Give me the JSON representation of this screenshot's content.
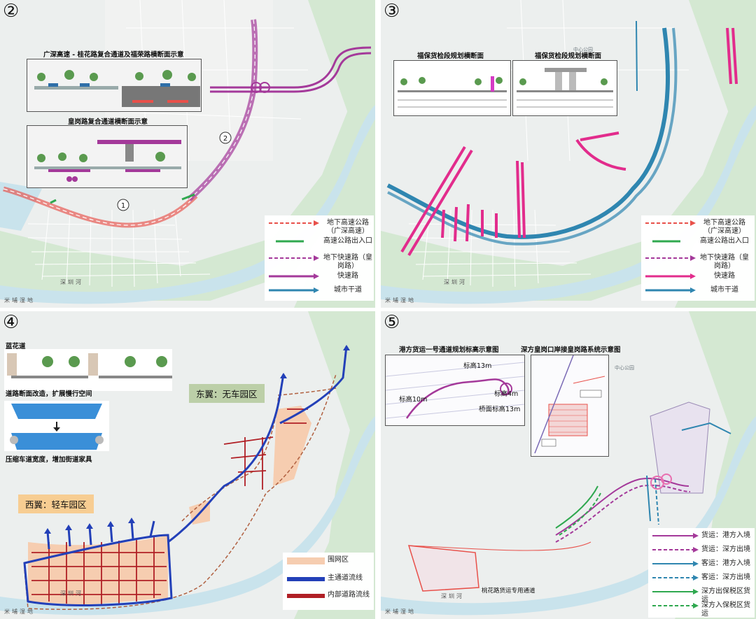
{
  "colors": {
    "expressway": "#e8504a",
    "ramp": "#2fa84f",
    "undergroundFast": "#a4399a",
    "fastRoad": "#a4399a",
    "cityArterial": "#2f86b0",
    "pink": "#e22c8c",
    "mainFlow": "#2340b8",
    "internalFlow": "#b01f25",
    "parkArea": "#f6cdb0",
    "water": "#c9e3ec",
    "green": "#d4e8d2"
  },
  "map_labels": {
    "wetland": "米埔湿地",
    "river": "深圳河",
    "center_park": "中心公园"
  },
  "panel2": {
    "number": "②",
    "inset1_title": "广深高速 - 桂花路复合通道及福荣路横断面示意",
    "inset2_title": "皇岗路复合通道横断面示意",
    "marker1": "1",
    "marker2": "2",
    "legend": [
      {
        "label": "地下高速公路（广深高速）",
        "style": "expressway",
        "dashed": true
      },
      {
        "label": "高速公路出入口",
        "style": "ramp",
        "dashed": false
      },
      {
        "label": "地下快速路（皇岗路）",
        "style": "undergroundFast",
        "dashed": true
      },
      {
        "label": "快速路",
        "style": "fastRoad",
        "dashed": false
      },
      {
        "label": "城市干道",
        "style": "cityArterial",
        "dashed": false
      }
    ]
  },
  "panel3": {
    "number": "③",
    "inset1_title": "福保货检段规划横断面",
    "inset2_title": "福保货检段规划横断面",
    "legend": [
      {
        "label": "地下高速公路（广深高速）",
        "style": "expressway",
        "dashed": true
      },
      {
        "label": "高速公路出入口",
        "style": "ramp",
        "dashed": false
      },
      {
        "label": "地下快速路（皇岗路）",
        "style": "undergroundFast",
        "dashed": true
      },
      {
        "label": "快速路",
        "style": "fastRoad",
        "dashed": false
      },
      {
        "label": "城市干道",
        "style": "cityArterial",
        "dashed": false
      }
    ]
  },
  "panel4": {
    "number": "④",
    "street_name": "蓝花道",
    "caption1": "道路断面改造，扩展慢行空间",
    "caption2": "压缩车道宽度，增加街道家具",
    "east_wing": "东翼：无车园区",
    "west_wing": "西翼：轻车园区",
    "legend": [
      {
        "label": "围网区",
        "style": "parkArea"
      },
      {
        "label": "主通道流线",
        "style": "mainFlow"
      },
      {
        "label": "内部道路流线",
        "style": "internalFlow"
      }
    ]
  },
  "panel5": {
    "number": "⑤",
    "inset1_title": "港方货运一号通道规划标高示意图",
    "inset2_title": "深方皇岗口岸接皇岗路系统示意图",
    "elev_a": "标高13m",
    "elev_b": "标高4m",
    "elev_c": "标高10m",
    "elev_d": "桥面标高13m",
    "cargo_road": "桃花路货运专用通道",
    "legend": [
      {
        "label": "货运：港方入境",
        "color": "#a4399a",
        "dashed": false
      },
      {
        "label": "货运：深方出境",
        "color": "#a4399a",
        "dashed": true
      },
      {
        "label": "客运：港方入境",
        "color": "#2f86b0",
        "dashed": false
      },
      {
        "label": "客运：深方出境",
        "color": "#2f86b0",
        "dashed": true
      },
      {
        "label": "深方出保税区货运",
        "color": "#2fa84f",
        "dashed": false
      },
      {
        "label": "深方入保税区货运",
        "color": "#2fa84f",
        "dashed": true
      }
    ]
  }
}
